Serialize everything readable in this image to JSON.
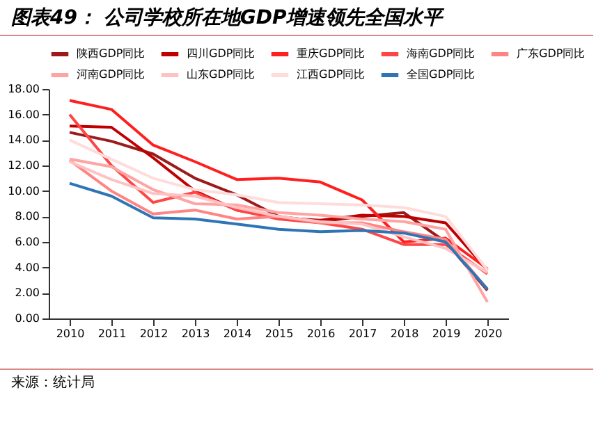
{
  "chart_data": {
    "type": "line",
    "title": "图表49：  公司学校所在地GDP增速领先全国水平",
    "categories": [
      "2010",
      "2011",
      "2012",
      "2013",
      "2014",
      "2015",
      "2016",
      "2017",
      "2018",
      "2019",
      "2020"
    ],
    "series": [
      {
        "name": "陕西GDP同比",
        "color": "#9b1b1b",
        "values": [
          14.6,
          13.9,
          12.9,
          11.0,
          9.7,
          8.0,
          7.6,
          8.0,
          8.3,
          6.0,
          2.2
        ]
      },
      {
        "name": "四川GDP同比",
        "color": "#c00000",
        "values": [
          15.1,
          15.0,
          12.6,
          10.0,
          8.5,
          7.9,
          7.7,
          8.1,
          8.0,
          7.5,
          3.8
        ]
      },
      {
        "name": "重庆GDP同比",
        "color": "#ff1f1f",
        "values": [
          17.1,
          16.4,
          13.6,
          12.3,
          10.9,
          11.0,
          10.7,
          9.3,
          6.0,
          6.3,
          3.9
        ]
      },
      {
        "name": "海南GDP同比",
        "color": "#ff4545",
        "values": [
          16.0,
          12.0,
          9.1,
          9.9,
          8.5,
          7.8,
          7.5,
          7.0,
          5.8,
          5.8,
          3.5
        ]
      },
      {
        "name": "广东GDP同比",
        "color": "#ff8585",
        "values": [
          12.4,
          10.0,
          8.2,
          8.5,
          7.8,
          8.0,
          7.5,
          7.5,
          6.8,
          6.2,
          2.3
        ]
      },
      {
        "name": "河南GDP同比",
        "color": "#ffa3a3",
        "values": [
          12.5,
          11.9,
          10.1,
          9.0,
          8.9,
          8.3,
          8.1,
          7.8,
          7.6,
          7.0,
          1.3
        ]
      },
      {
        "name": "山东GDP同比",
        "color": "#ffc2c2",
        "values": [
          12.3,
          10.9,
          9.8,
          9.6,
          8.7,
          8.0,
          7.6,
          7.4,
          6.4,
          5.5,
          3.6
        ]
      },
      {
        "name": "江西GDP同比",
        "color": "#ffdcdc",
        "values": [
          14.0,
          12.5,
          11.0,
          10.1,
          9.7,
          9.1,
          9.0,
          8.9,
          8.7,
          8.0,
          3.8
        ]
      },
      {
        "name": "全国GDP同比",
        "color": "#2e75b6",
        "values": [
          10.6,
          9.6,
          7.9,
          7.8,
          7.4,
          7.0,
          6.8,
          6.9,
          6.7,
          6.0,
          2.3
        ]
      }
    ],
    "ylim": [
      0,
      18
    ],
    "yticks": [
      {
        "value": 0,
        "label": "0.00"
      },
      {
        "value": 2,
        "label": "2.00"
      },
      {
        "value": 4,
        "label": "4.00"
      },
      {
        "value": 6,
        "label": "6.00"
      },
      {
        "value": 8,
        "label": "8.00"
      },
      {
        "value": 10,
        "label": "10.00"
      },
      {
        "value": 12,
        "label": "12.00"
      },
      {
        "value": 14,
        "label": "14.00"
      },
      {
        "value": 16,
        "label": "16.00"
      },
      {
        "value": 18,
        "label": "18.00"
      }
    ],
    "legend": "top",
    "grid": false,
    "marker": "none",
    "line_style": "solid",
    "annotations": [
      "来源：统计局"
    ]
  }
}
